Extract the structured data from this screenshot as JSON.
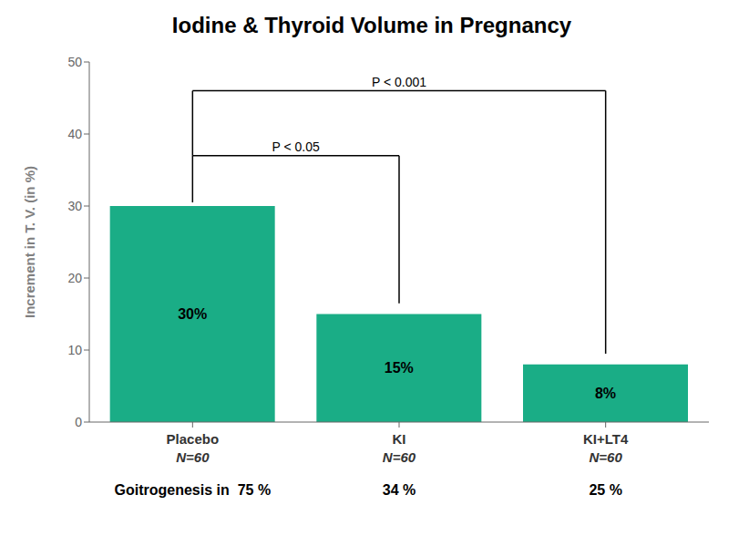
{
  "chart_data": {
    "type": "bar",
    "title": "Iodine & Thyroid Volume in Pregnancy",
    "ylabel": "Increment in T. V. (in %)",
    "categories": [
      "Placebo",
      "KI",
      "KI+LT4"
    ],
    "values": [
      30,
      15,
      8
    ],
    "value_labels": [
      "30%",
      "15%",
      "8%"
    ],
    "data_labels": true,
    "color": "#1AAD86",
    "ylim": [
      0,
      50
    ],
    "yticks": [
      0,
      10,
      20,
      30,
      40,
      50
    ],
    "grid": false,
    "annotations": {
      "n_labels": [
        "N=60",
        "N=60",
        "N=60"
      ],
      "significance_labels": [
        "P < 0.05",
        "P < 0.001"
      ],
      "goitrogenesis_prefix": "Goitrogenesis in",
      "goitrogenesis_labels": [
        "75 %",
        "34 %",
        "25 %"
      ]
    }
  }
}
